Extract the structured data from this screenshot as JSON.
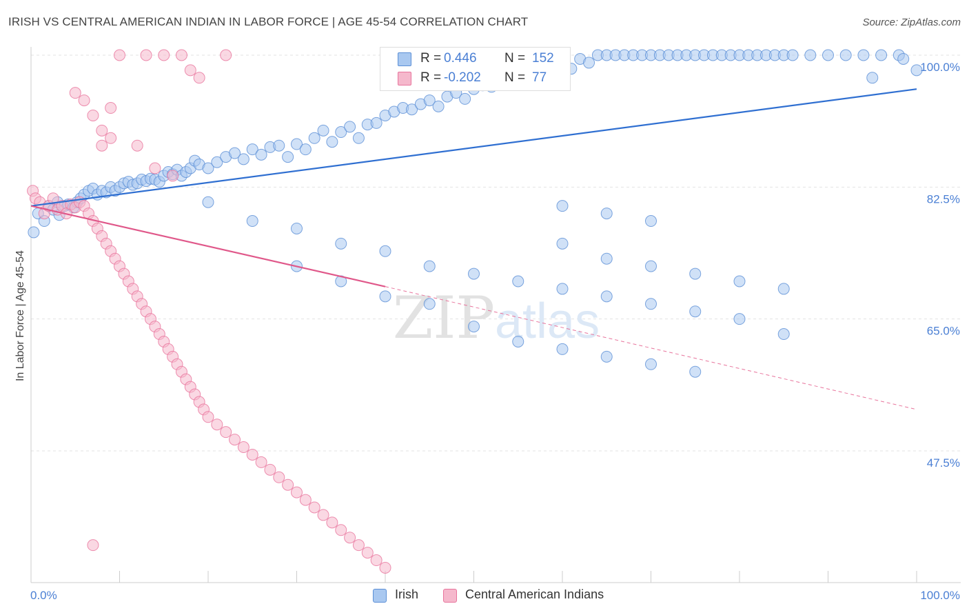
{
  "title": "IRISH VS CENTRAL AMERICAN INDIAN IN LABOR FORCE | AGE 45-54 CORRELATION CHART",
  "source": "Source: ZipAtlas.com",
  "watermark": "ZIPatlas",
  "legend_top": {
    "rows": [
      {
        "r_label": "R =",
        "r_value": "0.446",
        "n_label": "N =",
        "n_value": "152",
        "color": "#a9c8f0"
      },
      {
        "r_label": "R =",
        "r_value": "-0.202",
        "n_label": "N =",
        "n_value": "77",
        "color": "#f5b8cc"
      }
    ]
  },
  "legend_bottom": [
    {
      "label": "Irish",
      "color": "#a9c8f0"
    },
    {
      "label": "Central American Indians",
      "color": "#f5b8cc"
    }
  ],
  "chart_data": {
    "type": "scatter",
    "xlabel": "",
    "ylabel": "In Labor Force | Age 45-54",
    "xlim": [
      0,
      100
    ],
    "ylim": [
      30,
      100
    ],
    "x_tick_labels": [
      "0.0%",
      "100.0%"
    ],
    "y_tick_labels": [
      "100.0%",
      "82.5%",
      "65.0%",
      "47.5%"
    ],
    "y_ticks": [
      100.0,
      82.5,
      65.0,
      47.5
    ],
    "grid": true,
    "series": [
      {
        "name": "Irish",
        "color": "#5b8fd6",
        "fill": "#a9c8f0",
        "trend": {
          "x": [
            0,
            100
          ],
          "y": [
            80.0,
            95.5
          ]
        },
        "points": [
          [
            0.3,
            76.5
          ],
          [
            0.8,
            79
          ],
          [
            1.5,
            78
          ],
          [
            2,
            80
          ],
          [
            2.5,
            79.5
          ],
          [
            3,
            80.5
          ],
          [
            3.2,
            78.8
          ],
          [
            3.8,
            80
          ],
          [
            4.2,
            80.2
          ],
          [
            4.8,
            79.8
          ],
          [
            5.2,
            80.5
          ],
          [
            5.6,
            81
          ],
          [
            6,
            81.5
          ],
          [
            6.5,
            82
          ],
          [
            7,
            82.3
          ],
          [
            7.5,
            81.5
          ],
          [
            8,
            82
          ],
          [
            8.5,
            81.8
          ],
          [
            9,
            82.5
          ],
          [
            9.5,
            82
          ],
          [
            10,
            82.5
          ],
          [
            10.5,
            83
          ],
          [
            11,
            83.2
          ],
          [
            11.5,
            82.8
          ],
          [
            12,
            83
          ],
          [
            12.5,
            83.5
          ],
          [
            13,
            83.3
          ],
          [
            13.5,
            83.6
          ],
          [
            14,
            83.5
          ],
          [
            14.5,
            83.2
          ],
          [
            15,
            84
          ],
          [
            15.5,
            84.5
          ],
          [
            16,
            84.2
          ],
          [
            16.5,
            84.8
          ],
          [
            17,
            84
          ],
          [
            17.5,
            84.5
          ],
          [
            18,
            85
          ],
          [
            18.5,
            86
          ],
          [
            19,
            85.5
          ],
          [
            20,
            85
          ],
          [
            21,
            85.8
          ],
          [
            22,
            86.5
          ],
          [
            23,
            87
          ],
          [
            24,
            86.2
          ],
          [
            25,
            87.5
          ],
          [
            26,
            86.8
          ],
          [
            27,
            87.8
          ],
          [
            28,
            88
          ],
          [
            29,
            86.5
          ],
          [
            30,
            88.2
          ],
          [
            31,
            87.5
          ],
          [
            32,
            89
          ],
          [
            33,
            90
          ],
          [
            34,
            88.5
          ],
          [
            35,
            89.8
          ],
          [
            36,
            90.5
          ],
          [
            37,
            89
          ],
          [
            38,
            90.8
          ],
          [
            39,
            91
          ],
          [
            40,
            92
          ],
          [
            41,
            92.5
          ],
          [
            42,
            93
          ],
          [
            43,
            92.8
          ],
          [
            44,
            93.5
          ],
          [
            45,
            94
          ],
          [
            46,
            93.2
          ],
          [
            47,
            94.5
          ],
          [
            48,
            95
          ],
          [
            49,
            94.2
          ],
          [
            50,
            95.5
          ],
          [
            51,
            96
          ],
          [
            52,
            95.8
          ],
          [
            53,
            96.5
          ],
          [
            54,
            97
          ],
          [
            55,
            96.3
          ],
          [
            56,
            97.5
          ],
          [
            57,
            98
          ],
          [
            58,
            97.2
          ],
          [
            59,
            98.5
          ],
          [
            60,
            99
          ],
          [
            61,
            98.2
          ],
          [
            62,
            99.5
          ],
          [
            63,
            99
          ],
          [
            64,
            100
          ],
          [
            65,
            100
          ],
          [
            66,
            100
          ],
          [
            67,
            100
          ],
          [
            68,
            100
          ],
          [
            69,
            100
          ],
          [
            70,
            100
          ],
          [
            71,
            100
          ],
          [
            72,
            100
          ],
          [
            73,
            100
          ],
          [
            74,
            100
          ],
          [
            75,
            100
          ],
          [
            76,
            100
          ],
          [
            77,
            100
          ],
          [
            78,
            100
          ],
          [
            79,
            100
          ],
          [
            80,
            100
          ],
          [
            81,
            100
          ],
          [
            82,
            100
          ],
          [
            83,
            100
          ],
          [
            84,
            100
          ],
          [
            85,
            100
          ],
          [
            86,
            100
          ],
          [
            88,
            100
          ],
          [
            90,
            100
          ],
          [
            92,
            100
          ],
          [
            94,
            100
          ],
          [
            96,
            100
          ],
          [
            98,
            100
          ],
          [
            100,
            98
          ],
          [
            98.5,
            99.5
          ],
          [
            95,
            97
          ],
          [
            20,
            80.5
          ],
          [
            25,
            78
          ],
          [
            30,
            77
          ],
          [
            35,
            75
          ],
          [
            40,
            74
          ],
          [
            45,
            72
          ],
          [
            50,
            71
          ],
          [
            55,
            70
          ],
          [
            60,
            69
          ],
          [
            65,
            68
          ],
          [
            70,
            67
          ],
          [
            75,
            66
          ],
          [
            80,
            65
          ],
          [
            85,
            63
          ],
          [
            50,
            64
          ],
          [
            55,
            62
          ],
          [
            60,
            61
          ],
          [
            65,
            60
          ],
          [
            70,
            59
          ],
          [
            75,
            58
          ],
          [
            40,
            68
          ],
          [
            45,
            67
          ],
          [
            30,
            72
          ],
          [
            35,
            70
          ],
          [
            60,
            75
          ],
          [
            65,
            73
          ],
          [
            70,
            72
          ],
          [
            75,
            71
          ],
          [
            80,
            70
          ],
          [
            85,
            69
          ],
          [
            60,
            80
          ],
          [
            65,
            79
          ],
          [
            70,
            78
          ]
        ]
      },
      {
        "name": "Central American Indians",
        "color": "#e8749c",
        "fill": "#f5b8cc",
        "trend": {
          "x": [
            0,
            40,
            100
          ],
          "y": [
            80.0,
            69.3,
            53.0
          ]
        },
        "points": [
          [
            0.2,
            82
          ],
          [
            0.5,
            81
          ],
          [
            1,
            80.5
          ],
          [
            1.5,
            79
          ],
          [
            2,
            80
          ],
          [
            2.5,
            81
          ],
          [
            3,
            79.5
          ],
          [
            3.5,
            80
          ],
          [
            4,
            79
          ],
          [
            4.5,
            80.2
          ],
          [
            5,
            79.8
          ],
          [
            5.5,
            80.5
          ],
          [
            6,
            80
          ],
          [
            6.5,
            79
          ],
          [
            7,
            78
          ],
          [
            7.5,
            77
          ],
          [
            8,
            76
          ],
          [
            8.5,
            75
          ],
          [
            9,
            74
          ],
          [
            9.5,
            73
          ],
          [
            10,
            72
          ],
          [
            10.5,
            71
          ],
          [
            11,
            70
          ],
          [
            11.5,
            69
          ],
          [
            12,
            68
          ],
          [
            12.5,
            67
          ],
          [
            13,
            66
          ],
          [
            13.5,
            65
          ],
          [
            14,
            64
          ],
          [
            14.5,
            63
          ],
          [
            15,
            62
          ],
          [
            15.5,
            61
          ],
          [
            16,
            60
          ],
          [
            16.5,
            59
          ],
          [
            17,
            58
          ],
          [
            17.5,
            57
          ],
          [
            18,
            56
          ],
          [
            18.5,
            55
          ],
          [
            19,
            54
          ],
          [
            19.5,
            53
          ],
          [
            20,
            52
          ],
          [
            21,
            51
          ],
          [
            22,
            50
          ],
          [
            23,
            49
          ],
          [
            24,
            48
          ],
          [
            25,
            47
          ],
          [
            26,
            46
          ],
          [
            27,
            45
          ],
          [
            28,
            44
          ],
          [
            29,
            43
          ],
          [
            30,
            42
          ],
          [
            31,
            41
          ],
          [
            32,
            40
          ],
          [
            33,
            39
          ],
          [
            34,
            38
          ],
          [
            35,
            37
          ],
          [
            36,
            36
          ],
          [
            37,
            35
          ],
          [
            38,
            34
          ],
          [
            39,
            33
          ],
          [
            40,
            32
          ],
          [
            7,
            35
          ],
          [
            8,
            88
          ],
          [
            9,
            93
          ],
          [
            10,
            100
          ],
          [
            13,
            100
          ],
          [
            15,
            100
          ],
          [
            17,
            100
          ],
          [
            18,
            98
          ],
          [
            19,
            97
          ],
          [
            22,
            100
          ],
          [
            5,
            95
          ],
          [
            6,
            94
          ],
          [
            7,
            92
          ],
          [
            8,
            90
          ],
          [
            9,
            89
          ],
          [
            12,
            88
          ],
          [
            14,
            85
          ],
          [
            16,
            84
          ]
        ]
      }
    ]
  }
}
